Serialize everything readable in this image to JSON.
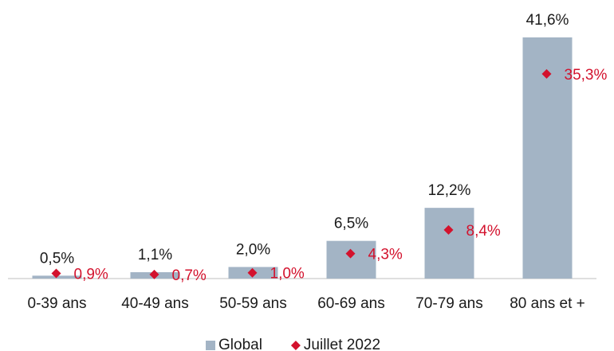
{
  "chart_data": {
    "type": "bar",
    "categories": [
      "0-39 ans",
      "40-49 ans",
      "50-59 ans",
      "60-69 ans",
      "70-79 ans",
      "80 ans et +"
    ],
    "series": [
      {
        "name": "Global",
        "type": "bar",
        "color": "#a3b4c5",
        "values": [
          0.5,
          1.1,
          2.0,
          6.5,
          12.2,
          41.6
        ],
        "value_labels": [
          "0,5%",
          "1,1%",
          "2,0%",
          "6,5%",
          "12,2%",
          "41,6%"
        ]
      },
      {
        "name": "Juillet 2022",
        "type": "scatter",
        "color": "#d3122d",
        "values": [
          0.9,
          0.7,
          1.0,
          4.3,
          8.4,
          35.3
        ],
        "value_labels": [
          "0,9%",
          "0,7%",
          "1,0%",
          "4,3%",
          "8,4%",
          "35,3%"
        ]
      }
    ]
  }
}
